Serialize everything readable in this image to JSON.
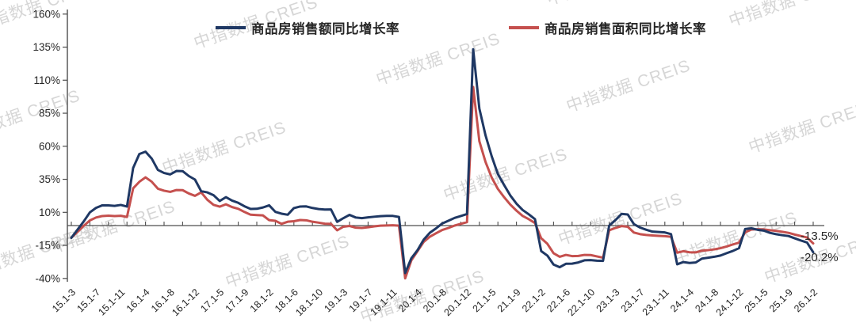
{
  "watermark": {
    "text": "中指数据 CREIS",
    "color": "#cccccc",
    "positions": [
      [
        -35,
        18
      ],
      [
        240,
        40
      ],
      [
        685,
        -15
      ],
      [
        915,
        12
      ],
      [
        -60,
        158
      ],
      [
        200,
        198
      ],
      [
        470,
        86
      ],
      [
        710,
        120
      ],
      [
        940,
        172
      ],
      [
        60,
        298
      ],
      [
        -45,
        330
      ],
      [
        280,
        342
      ],
      [
        555,
        232
      ],
      [
        700,
        288
      ],
      [
        845,
        312
      ],
      [
        960,
        336
      ],
      [
        450,
        386
      ]
    ]
  },
  "legend": {
    "items": [
      {
        "label": "商品房销售额同比增长率",
        "color": "#1F3864"
      },
      {
        "label": "商品房销售面积同比增长率",
        "color": "#C5504E"
      }
    ]
  },
  "chart_data": {
    "type": "line",
    "title": "",
    "xlabel": "",
    "ylabel": "",
    "grid": false,
    "legend_position": "top",
    "axis_color": "#4d4d4d",
    "tick_label_color": "#262626",
    "y_axis": {
      "unit": "%",
      "min": -40,
      "max": 160,
      "ticks": [
        160,
        135,
        110,
        85,
        60,
        35,
        10,
        -15,
        -40
      ]
    },
    "x_axis": {
      "points_per_label": 4,
      "points_per_tickmark": 3,
      "tick_labels": [
        "15.1-3",
        "15.1-7",
        "15.1-11",
        "16.1-4",
        "16.1-8",
        "16.1-12",
        "17.1-5",
        "17.1-9",
        "18.1-2",
        "18.1-6",
        "18.1-10",
        "19.1-3",
        "19.1-7",
        "19.1-11",
        "20.1-4",
        "20.1-8",
        "20.1-12",
        "21.1-5",
        "21.1-9",
        "22.1-2",
        "22.1-6",
        "22.1-10",
        "23.1-3",
        "23.1-7",
        "23.1-11",
        "24.1-4",
        "24.1-8",
        "24.1-12",
        "25.1-5",
        "25.1-9",
        "26.1-2"
      ]
    },
    "series": [
      {
        "name": "商品房销售额同比增长率",
        "color": "#1F3864",
        "end_label": "-20.2%",
        "values": [
          -9.3,
          -3.1,
          3.1,
          10,
          13.4,
          15.3,
          15.3,
          14.9,
          15.6,
          14.4,
          43.6,
          54.1,
          55.9,
          50.7,
          42.1,
          39.8,
          38.7,
          41.3,
          41.2,
          37.5,
          34.8,
          26,
          25.1,
          23,
          18.6,
          21.5,
          18.9,
          17.2,
          14.6,
          12.6,
          12.7,
          13.7,
          15.3,
          10.4,
          9,
          8.2,
          13.2,
          14.4,
          14.5,
          13.3,
          12.5,
          12.1,
          12.2,
          2.8,
          5.6,
          8.1,
          6.1,
          5.6,
          6.2,
          6.7,
          7.1,
          7.3,
          7.3,
          6.5,
          -35.9,
          -24.7,
          -18.6,
          -10.6,
          -5.4,
          -2.1,
          1.6,
          3.7,
          5.8,
          7.2,
          8.7,
          133.4,
          88.5,
          68.2,
          52.4,
          38.9,
          30.7,
          22.8,
          16.6,
          11.8,
          8.5,
          4.8,
          -19.3,
          -22.7,
          -29.5,
          -31.5,
          -28.9,
          -28.8,
          -27.9,
          -26.3,
          -26.1,
          -26.6,
          -26.7,
          -0.1,
          4.1,
          8.8,
          8.4,
          1.1,
          -1.5,
          -3.2,
          -4.6,
          -4.9,
          -5.2,
          -6.5,
          -29.3,
          -27.6,
          -28.3,
          -27.9,
          -25,
          -24.3,
          -23.6,
          -22.7,
          -20.9,
          -19.2,
          -17.1,
          -2.6,
          -2.1,
          -3.2,
          -3.8,
          -5.5,
          -6.5,
          -7.3,
          -7.9,
          -9.6,
          -11.3,
          -12.8,
          -20.2
        ]
      },
      {
        "name": "商品房销售面积同比增长率",
        "color": "#C5504E",
        "end_label": "-13.5%",
        "values": [
          -9.2,
          -4.8,
          -0.2,
          3.9,
          6.1,
          7.2,
          7.5,
          7.2,
          7.4,
          6.5,
          28.2,
          33.1,
          36.5,
          33.2,
          27.9,
          26.4,
          25.5,
          26.9,
          26.8,
          24.3,
          22.5,
          25.1,
          19.5,
          15.7,
          14.3,
          16.1,
          14,
          12.7,
          10.3,
          8.2,
          7.9,
          7.7,
          4.1,
          3.6,
          1.3,
          2.9,
          3.3,
          4.2,
          4,
          2.9,
          2.2,
          1.4,
          1.3,
          -3.6,
          -0.9,
          -0.3,
          -1.6,
          -1.8,
          -1.3,
          -0.6,
          -0.1,
          0.1,
          0.2,
          -0.1,
          -39.9,
          -26.3,
          -19.3,
          -12.3,
          -8.4,
          -5.8,
          -3.3,
          -1.8,
          0,
          1.3,
          2.6,
          104.9,
          63.8,
          48.1,
          36.3,
          27.7,
          21.5,
          15.9,
          11.3,
          7.3,
          4.8,
          1.9,
          -9.6,
          -13.8,
          -20.9,
          -23.6,
          -22.2,
          -23.1,
          -23,
          -22.2,
          -22.3,
          -23.3,
          -24.3,
          -3.6,
          -1.8,
          -0.4,
          -0.9,
          -5.3,
          -6.5,
          -7.1,
          -7.5,
          -7.8,
          -8,
          -8.5,
          -20.5,
          -19.4,
          -20.2,
          -20.3,
          -19,
          -18.6,
          -18,
          -17.1,
          -15.8,
          -14.3,
          -12.9,
          -5.1,
          -3,
          -2.8,
          -2.9,
          -3.5,
          -4,
          -4.7,
          -5.5,
          -6.8,
          -7.9,
          -9,
          -13.5
        ]
      }
    ]
  }
}
